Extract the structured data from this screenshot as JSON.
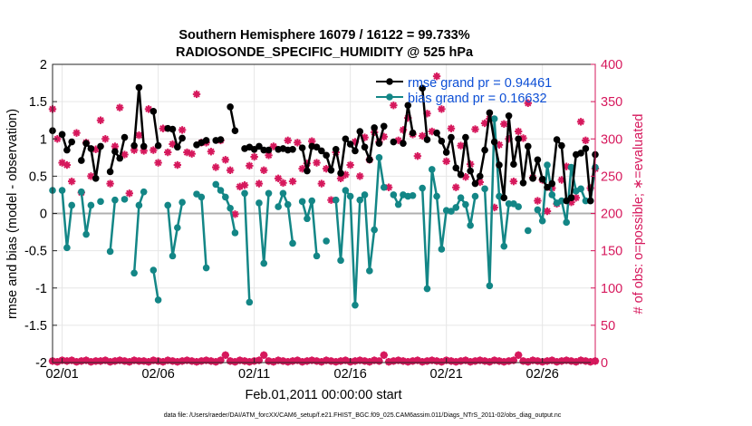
{
  "chart_data": {
    "type": "line",
    "title_line1": "Southern Hemisphere 16079 / 16122 = 99.733%",
    "title_line2": "RADIOSONDE_SPECIFIC_HUMIDITY @ 525 hPa",
    "xlabel": "Feb.01,2011 00:00:00 start",
    "ylabel_left": "rmse and bias (model - observation)",
    "ylabel_right": "# of obs: o=possible; ∗=evaluated",
    "footer": "data file: /Users/raeder/DAI/ATM_forcXX/CAM6_setup/f.e21.FHIST_BGC.f09_025.CAM6assim.011/Diags_NTrS_2011-02/obs_diag_output.nc",
    "xlim": [
      0.5,
      28.75
    ],
    "ylim_left": [
      -2,
      2
    ],
    "ylim_right": [
      0,
      400
    ],
    "x_ticks": [
      1,
      6,
      11,
      16,
      21,
      26
    ],
    "x_tick_labels": [
      "02/01",
      "02/06",
      "02/11",
      "02/16",
      "02/21",
      "02/26"
    ],
    "y_left_ticks": [
      -2,
      -1.5,
      -1,
      -0.5,
      0,
      0.5,
      1,
      1.5,
      2
    ],
    "y_left_tick_labels": [
      "-2",
      "-1.5",
      "-1",
      "-0.5",
      "0",
      "0.5",
      "1",
      "1.5",
      "2"
    ],
    "y_right_ticks": [
      0,
      50,
      100,
      150,
      200,
      250,
      300,
      350,
      400
    ],
    "y_right_tick_labels": [
      "0",
      "50",
      "100",
      "150",
      "200",
      "250",
      "300",
      "350",
      "400"
    ],
    "legend_location": "top-right",
    "colors": {
      "rmse": "#000000",
      "bias": "#138686",
      "obs": "#d6185c",
      "legend_text": "#0d4fd6",
      "zero_line": "#b0b0b0"
    },
    "series": [
      {
        "name": "rmse",
        "legend": "rmse grand pr = 0.94461",
        "x": [
          0.5,
          0.75,
          1.0,
          1.25,
          1.5,
          1.75,
          2.0,
          2.25,
          2.5,
          2.75,
          3.0,
          3.25,
          3.5,
          3.75,
          4.0,
          4.25,
          4.5,
          4.75,
          5.0,
          5.25,
          5.5,
          5.75,
          6.0,
          6.25,
          6.5,
          6.75,
          7.0,
          7.25,
          7.5,
          7.75,
          8.0,
          8.25,
          8.5,
          8.75,
          9.0,
          9.25,
          9.5,
          9.75,
          10.0,
          10.25,
          10.5,
          10.75,
          11.0,
          11.25,
          11.5,
          11.75,
          12.0,
          12.25,
          12.5,
          12.75,
          13.0,
          13.25,
          13.5,
          13.75,
          14.0,
          14.25,
          14.5,
          14.75,
          15.0,
          15.25,
          15.5,
          15.75,
          16.0,
          16.25,
          16.5,
          16.75,
          17.0,
          17.25,
          17.5,
          17.75,
          18.0,
          18.25,
          18.5,
          18.75,
          19.0,
          19.25,
          19.5,
          19.75,
          20.0,
          20.25,
          20.5,
          20.75,
          21.0,
          21.25,
          21.5,
          21.75,
          22.0,
          22.25,
          22.5,
          22.75,
          23.0,
          23.25,
          23.5,
          23.75,
          24.0,
          24.25,
          24.5,
          24.75,
          25.0,
          25.25,
          25.5,
          25.75,
          26.0,
          26.25,
          26.5,
          26.75,
          27.0,
          27.25,
          27.5,
          27.75,
          28.0,
          28.25,
          28.5,
          28.75
        ],
        "y": [
          1.11,
          null,
          1.06,
          0.85,
          0.96,
          null,
          0.71,
          0.94,
          0.87,
          0.47,
          0.9,
          null,
          0.56,
          0.83,
          0.74,
          1.02,
          null,
          0.91,
          1.69,
          0.9,
          null,
          1.37,
          0.91,
          null,
          1.14,
          1.13,
          0.89,
          1.01,
          null,
          null,
          0.92,
          0.95,
          0.98,
          null,
          0.98,
          0.99,
          null,
          1.43,
          1.11,
          null,
          0.87,
          0.89,
          0.86,
          0.9,
          0.85,
          0.85,
          null,
          0.86,
          0.87,
          0.85,
          0.86,
          null,
          0.88,
          0.57,
          0.9,
          0.89,
          0.84,
          0.78,
          0.58,
          0.86,
          0.54,
          1.0,
          0.93,
          0.84,
          1.1,
          0.89,
          0.72,
          1.15,
          0.94,
          1.17,
          null,
          0.96,
          null,
          0.94,
          1.45,
          1.08,
          null,
          1.68,
          0.99,
          null,
          1.08,
          0.97,
          0.82,
          1.02,
          0.61,
          0.52,
          1.02,
          0.57,
          0.4,
          0.5,
          0.85,
          1.35,
          0.96,
          0.65,
          0.21,
          1.31,
          0.66,
          1.0,
          0.41,
          0.9,
          0.47,
          0.72,
          0.46,
          0.35,
          0.4,
          0.99,
          0.91,
          0.17,
          0.21,
          0.79,
          0.81,
          0.87,
          0.17,
          0.79
        ]
      },
      {
        "name": "bias",
        "legend": "bias grand pr = 0.16632",
        "x": [
          0.5,
          0.75,
          1.0,
          1.25,
          1.5,
          1.75,
          2.0,
          2.25,
          2.5,
          2.75,
          3.0,
          3.25,
          3.5,
          3.75,
          4.0,
          4.25,
          4.5,
          4.75,
          5.0,
          5.25,
          5.5,
          5.75,
          6.0,
          6.25,
          6.5,
          6.75,
          7.0,
          7.25,
          7.5,
          7.75,
          8.0,
          8.25,
          8.5,
          8.75,
          9.0,
          9.25,
          9.5,
          9.75,
          10.0,
          10.25,
          10.5,
          10.75,
          11.0,
          11.25,
          11.5,
          11.75,
          12.0,
          12.25,
          12.5,
          12.75,
          13.0,
          13.25,
          13.5,
          13.75,
          14.0,
          14.25,
          14.5,
          14.75,
          15.0,
          15.25,
          15.5,
          15.75,
          16.0,
          16.25,
          16.5,
          16.75,
          17.0,
          17.25,
          17.5,
          17.75,
          18.0,
          18.25,
          18.5,
          18.75,
          19.0,
          19.25,
          19.5,
          19.75,
          20.0,
          20.25,
          20.5,
          20.75,
          21.0,
          21.25,
          21.5,
          21.75,
          22.0,
          22.25,
          22.5,
          22.75,
          23.0,
          23.25,
          23.5,
          23.75,
          24.0,
          24.25,
          24.5,
          24.75,
          25.0,
          25.25,
          25.5,
          25.75,
          26.0,
          26.25,
          26.5,
          26.75,
          27.0,
          27.25,
          27.5,
          27.75,
          28.0,
          28.25,
          28.5,
          28.75
        ],
        "y": [
          0.31,
          null,
          0.31,
          -0.46,
          0.11,
          null,
          0.29,
          -0.28,
          0.11,
          null,
          0.16,
          null,
          -0.51,
          0.18,
          null,
          0.19,
          null,
          -0.8,
          0.11,
          0.29,
          null,
          -0.76,
          -1.16,
          null,
          0.11,
          -0.57,
          -0.19,
          0.15,
          null,
          null,
          0.26,
          0.22,
          -0.73,
          null,
          0.39,
          0.31,
          0.22,
          0.07,
          -0.26,
          null,
          0.27,
          -1.19,
          null,
          0.14,
          -0.67,
          0.27,
          null,
          0.09,
          0.27,
          0.12,
          -0.4,
          null,
          0.16,
          -0.07,
          0.17,
          -0.57,
          null,
          -0.37,
          null,
          0.18,
          -0.63,
          0.31,
          0.23,
          -1.23,
          0.18,
          0.25,
          -0.77,
          -0.22,
          0.75,
          0.35,
          null,
          0.25,
          0.12,
          0.25,
          0.23,
          0.24,
          null,
          0.34,
          -1.01,
          0.59,
          0.23,
          -0.48,
          0.04,
          0.03,
          0.08,
          0.21,
          0.12,
          -0.16,
          0.23,
          null,
          0.33,
          -0.97,
          1.27,
          0.23,
          -0.44,
          0.13,
          0.13,
          0.09,
          null,
          -0.23,
          null,
          0.05,
          -0.1,
          0.65,
          0.25,
          0.14,
          0.17,
          -0.12,
          0.62,
          0.3,
          0.33,
          0.17,
          0.17,
          0.62
        ]
      },
      {
        "name": "obs_possible",
        "x": [
          0.5,
          0.75,
          1.0,
          1.25,
          1.5,
          1.75,
          2.0,
          2.25,
          2.5,
          2.75,
          3.0,
          3.25,
          3.5,
          3.75,
          4.0,
          4.25,
          4.5,
          4.75,
          5.0,
          5.25,
          5.5,
          5.75,
          6.0,
          6.25,
          6.5,
          6.75,
          7.0,
          7.25,
          7.5,
          7.75,
          8.0,
          8.25,
          8.5,
          8.75,
          9.0,
          9.25,
          9.5,
          9.75,
          10.0,
          10.25,
          10.5,
          10.75,
          11.0,
          11.25,
          11.5,
          11.75,
          12.0,
          12.25,
          12.5,
          12.75,
          13.0,
          13.25,
          13.5,
          13.75,
          14.0,
          14.25,
          14.5,
          14.75,
          15.0,
          15.25,
          15.5,
          15.75,
          16.0,
          16.25,
          16.5,
          16.75,
          17.0,
          17.25,
          17.5,
          17.75,
          18.0,
          18.25,
          18.5,
          18.75,
          19.0,
          19.25,
          19.5,
          19.75,
          20.0,
          20.25,
          20.5,
          20.75,
          21.0,
          21.25,
          21.5,
          21.75,
          22.0,
          22.25,
          22.5,
          22.75,
          23.0,
          23.25,
          23.5,
          23.75,
          24.0,
          24.25,
          24.5,
          24.75,
          25.0,
          25.25,
          25.5,
          25.75,
          26.0,
          26.25,
          26.5,
          26.75,
          27.0,
          27.25,
          27.5,
          27.75,
          28.0,
          28.25,
          28.5,
          28.75
        ],
        "y": [
          2,
          1,
          3,
          2,
          3,
          1,
          2,
          3,
          1,
          2,
          2,
          3,
          1,
          2,
          3,
          2,
          1,
          3,
          2,
          2,
          1,
          3,
          2,
          1,
          3,
          2,
          1,
          2,
          3,
          2,
          1,
          2,
          3,
          2,
          1,
          3,
          10,
          2,
          1,
          3,
          2,
          1,
          2,
          3,
          10,
          2,
          1,
          3,
          2,
          1,
          2,
          3,
          1,
          2,
          3,
          2,
          1,
          3,
          2,
          1,
          2,
          3,
          1,
          2,
          3,
          2,
          1,
          3,
          2,
          10,
          1,
          2,
          3,
          2,
          1,
          2,
          3,
          1,
          2,
          3,
          2,
          1,
          3,
          2,
          1,
          2,
          3,
          1,
          2,
          3,
          2,
          1,
          3,
          2,
          1,
          2,
          3,
          10,
          2,
          1,
          3,
          2,
          1,
          2,
          3,
          1,
          2,
          3,
          2,
          1,
          3,
          2,
          1,
          2
        ]
      },
      {
        "name": "obs_evaluated",
        "x": [
          0.5,
          0.75,
          1.0,
          1.25,
          1.5,
          1.75,
          2.0,
          2.25,
          2.5,
          2.75,
          3.0,
          3.25,
          3.5,
          3.75,
          4.0,
          4.25,
          4.5,
          4.75,
          5.0,
          5.25,
          5.5,
          5.75,
          6.0,
          6.25,
          6.5,
          6.75,
          7.0,
          7.25,
          7.5,
          7.75,
          8.0,
          8.25,
          8.5,
          8.75,
          9.0,
          9.25,
          9.5,
          9.75,
          10.0,
          10.25,
          10.5,
          10.75,
          11.0,
          11.25,
          11.5,
          11.75,
          12.0,
          12.25,
          12.5,
          12.75,
          13.0,
          13.25,
          13.5,
          13.75,
          14.0,
          14.25,
          14.5,
          14.75,
          15.0,
          15.25,
          15.5,
          15.75,
          16.0,
          16.25,
          16.5,
          16.75,
          17.0,
          17.25,
          17.5,
          17.75,
          18.0,
          18.25,
          18.5,
          18.75,
          19.0,
          19.25,
          19.5,
          19.75,
          20.0,
          20.25,
          20.5,
          20.75,
          21.0,
          21.25,
          21.5,
          21.75,
          22.0,
          22.25,
          22.5,
          22.75,
          23.0,
          23.25,
          23.5,
          23.75,
          24.0,
          24.25,
          24.5,
          24.75,
          25.0,
          25.25,
          25.5,
          25.75,
          26.0,
          26.25,
          26.5,
          26.75,
          27.0,
          27.25,
          27.5,
          27.75,
          28.0,
          28.25,
          28.5,
          28.75
        ],
        "y": [
          340,
          300,
          268,
          265,
          243,
          308,
          228,
          295,
          250,
          286,
          325,
          300,
          240,
          290,
          342,
          279,
          227,
          285,
          305,
          284,
          340,
          285,
          268,
          314,
          282,
          293,
          265,
          312,
          282,
          280,
          360,
          295,
          295,
          283,
          262,
          298,
          272,
          258,
          199,
          236,
          238,
          264,
          276,
          240,
          258,
          278,
          290,
          247,
          241,
          298,
          243,
          295,
          260,
          267,
          297,
          268,
          240,
          260,
          218,
          282,
          247,
          252,
          265,
          296,
          250,
          302,
          272,
          309,
          296,
          303,
          235,
          345,
          298,
          312,
          328,
          306,
          277,
          304,
          334,
          310,
          384,
          340,
          270,
          314,
          235,
          291,
          249,
          266,
          313,
          242,
          321,
          327,
          208,
          292,
          320,
          300,
          243,
          310,
          301,
          348,
          248,
          217,
          245,
          203,
          234,
          213,
          245,
          263,
          215,
          221,
          323,
          298,
          234,
          260
        ]
      }
    ]
  }
}
